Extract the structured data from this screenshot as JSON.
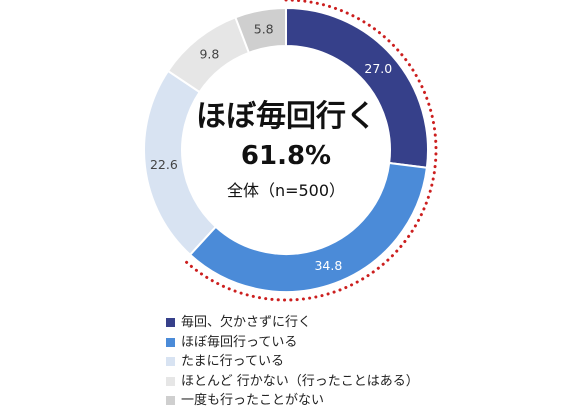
{
  "chart_data": {
    "type": "pie",
    "variant": "donut",
    "categories": [
      "毎回、欠かさずに行く",
      "ほぼ毎回行っている",
      "たまに行っている",
      "ほとんど 行かない（行ったことはある）",
      "一度も行ったことがない"
    ],
    "values": [
      27.0,
      34.8,
      22.6,
      9.8,
      5.8
    ],
    "value_labels": [
      "27.0",
      "34.8",
      "22.6",
      "9.8",
      "5.8"
    ],
    "colors": [
      "#36408a",
      "#4b8bd8",
      "#d8e3f2",
      "#e6e6e6",
      "#cfcfcf"
    ],
    "label_colors": [
      "#ffffff",
      "#ffffff",
      "#444444",
      "#444444",
      "#444444"
    ],
    "center": {
      "title": "ほぼ毎回行く",
      "value": "61.8%",
      "note": "全体（n=500）"
    },
    "highlight": {
      "series_indices": [
        0,
        1
      ],
      "style": "dotted",
      "color": "#cc1f1f"
    },
    "legend_position": "bottom"
  }
}
